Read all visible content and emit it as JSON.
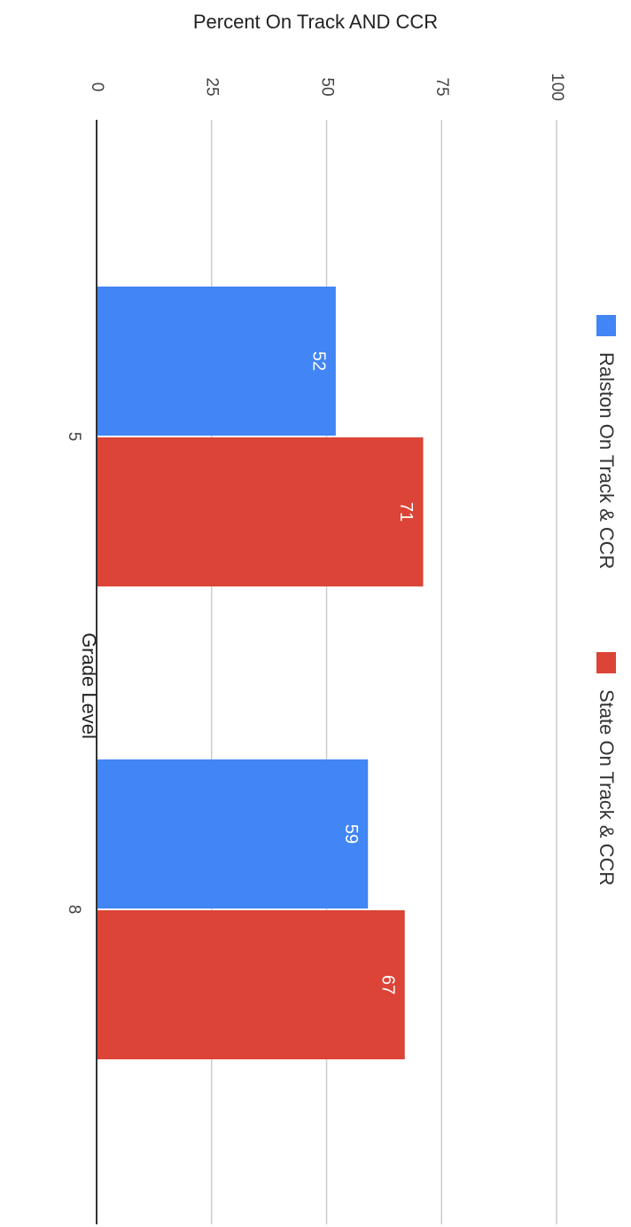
{
  "chart_data": {
    "type": "bar",
    "orientation": "horizontal",
    "title": "",
    "xlabel": "Percent On Track AND CCR",
    "ylabel": "Grade Level",
    "xlim": [
      0,
      100
    ],
    "x_ticks": [
      0,
      25,
      50,
      75,
      100
    ],
    "categories": [
      "5",
      "8"
    ],
    "series": [
      {
        "name": "Ralston On Track & CCR",
        "values": [
          52,
          59
        ],
        "color": "#4285f4"
      },
      {
        "name": "State On Track & CCR",
        "values": [
          71,
          67
        ],
        "color": "#db4437"
      }
    ],
    "grid": true,
    "legend_position": "right",
    "data_labels": true
  }
}
